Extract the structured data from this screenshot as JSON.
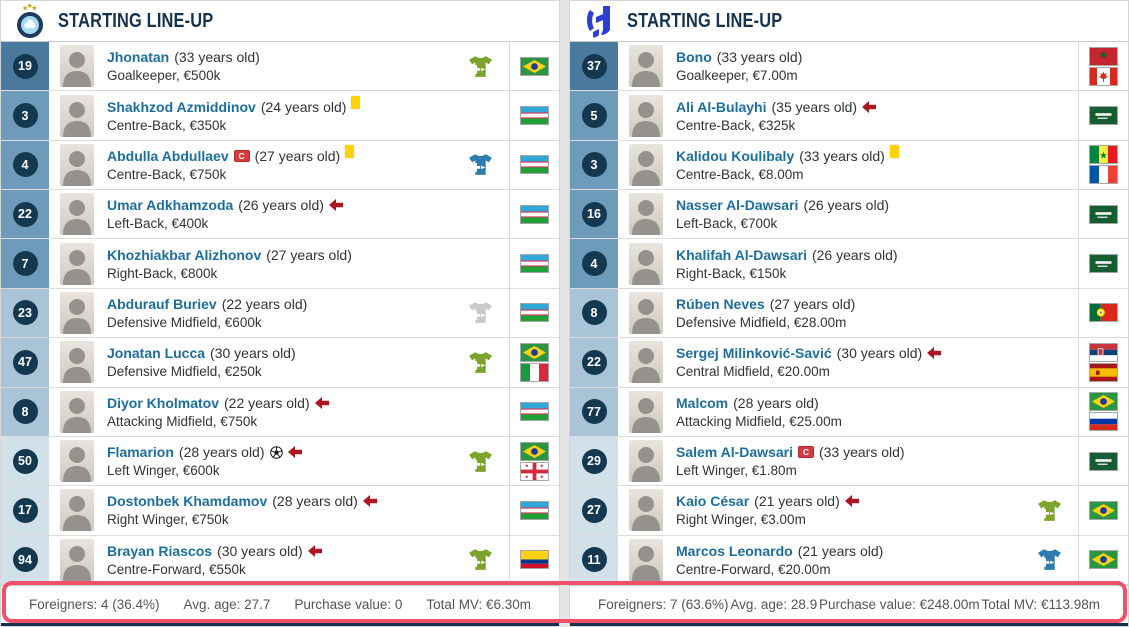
{
  "colors": {
    "accent_highlight": "#f0506a",
    "name_link": "#1c6e9e",
    "header_navy": "#15324e",
    "badge_navy": "#13384f",
    "group_gk": "#49799c",
    "group_df": "#6e9bb9",
    "group_mf": "#a9c4d7",
    "group_fw": "#d2e0ea",
    "jersey_green": "#7ca32c",
    "jersey_blue": "#2f7cb0",
    "jersey_gray": "#c9c9c9",
    "yellow_card": "#ffd400",
    "sub_off_arrow": "#ac1620"
  },
  "teams": [
    {
      "title": "STARTING LINE-UP",
      "crest_icon": "uzbek-club-crest",
      "players": [
        {
          "number": "19",
          "group": "gk",
          "name": "Jhonatan",
          "captain": false,
          "age_text": "(33 years old)",
          "yellow_card": false,
          "goal": false,
          "sub_off": false,
          "position": "Goalkeeper",
          "value": "€500k",
          "jersey": "green",
          "flags": [
            "brazil"
          ]
        },
        {
          "number": "3",
          "group": "df",
          "name": "Shakhzod Azmiddinov",
          "captain": false,
          "age_text": "(24 years old)",
          "yellow_card": true,
          "goal": false,
          "sub_off": false,
          "position": "Centre-Back",
          "value": "€350k",
          "jersey": null,
          "flags": [
            "uzbekistan"
          ]
        },
        {
          "number": "4",
          "group": "df",
          "name": "Abdulla Abdullaev",
          "captain": true,
          "age_text": "(27 years old)",
          "yellow_card": true,
          "goal": false,
          "sub_off": false,
          "position": "Centre-Back",
          "value": "€750k",
          "jersey": "blue",
          "flags": [
            "uzbekistan"
          ]
        },
        {
          "number": "22",
          "group": "df",
          "name": "Umar Adkhamzoda",
          "captain": false,
          "age_text": "(26 years old)",
          "yellow_card": false,
          "goal": false,
          "sub_off": true,
          "position": "Left-Back",
          "value": "€400k",
          "jersey": null,
          "flags": [
            "uzbekistan"
          ]
        },
        {
          "number": "7",
          "group": "df",
          "name": "Khozhiakbar Alizhonov",
          "captain": false,
          "age_text": "(27 years old)",
          "yellow_card": false,
          "goal": false,
          "sub_off": false,
          "position": "Right-Back",
          "value": "€800k",
          "jersey": null,
          "flags": [
            "uzbekistan"
          ]
        },
        {
          "number": "23",
          "group": "mf",
          "name": "Abdurauf Buriev",
          "captain": false,
          "age_text": "(22 years old)",
          "yellow_card": false,
          "goal": false,
          "sub_off": false,
          "position": "Defensive Midfield",
          "value": "€600k",
          "jersey": "gray",
          "flags": [
            "uzbekistan"
          ]
        },
        {
          "number": "47",
          "group": "mf",
          "name": "Jonatan Lucca",
          "captain": false,
          "age_text": "(30 years old)",
          "yellow_card": false,
          "goal": false,
          "sub_off": false,
          "position": "Defensive Midfield",
          "value": "€250k",
          "jersey": "green",
          "flags": [
            "brazil",
            "italy"
          ]
        },
        {
          "number": "8",
          "group": "mf",
          "name": "Diyor Kholmatov",
          "captain": false,
          "age_text": "(22 years old)",
          "yellow_card": false,
          "goal": false,
          "sub_off": true,
          "position": "Attacking Midfield",
          "value": "€750k",
          "jersey": null,
          "flags": [
            "uzbekistan"
          ]
        },
        {
          "number": "50",
          "group": "fw",
          "name": "Flamarion",
          "captain": false,
          "age_text": "(28 years old)",
          "yellow_card": false,
          "goal": true,
          "sub_off": true,
          "position": "Left Winger",
          "value": "€600k",
          "jersey": "green",
          "flags": [
            "brazil",
            "georgia"
          ]
        },
        {
          "number": "17",
          "group": "fw",
          "name": "Dostonbek Khamdamov",
          "captain": false,
          "age_text": "(28 years old)",
          "yellow_card": false,
          "goal": false,
          "sub_off": true,
          "position": "Right Winger",
          "value": "€750k",
          "jersey": null,
          "flags": [
            "uzbekistan"
          ]
        },
        {
          "number": "94",
          "group": "fw",
          "name": "Brayan Riascos",
          "captain": false,
          "age_text": "(30 years old)",
          "yellow_card": false,
          "goal": false,
          "sub_off": true,
          "position": "Centre-Forward",
          "value": "€550k",
          "jersey": "green",
          "flags": [
            "colombia"
          ]
        }
      ],
      "stats": [
        "Foreigners: 4 (36.4%)",
        "Avg. age: 27.7",
        "Purchase value: 0",
        "Total MV: €6.30m"
      ]
    },
    {
      "title": "STARTING LINE-UP",
      "crest_icon": "al-hilal-crest",
      "players": [
        {
          "number": "37",
          "group": "gk",
          "name": "Bono",
          "captain": false,
          "age_text": "(33 years old)",
          "yellow_card": false,
          "goal": false,
          "sub_off": false,
          "position": "Goalkeeper",
          "value": "€7.00m",
          "jersey": null,
          "flags": [
            "morocco",
            "canada"
          ]
        },
        {
          "number": "5",
          "group": "df",
          "name": "Ali Al-Bulayhi",
          "captain": false,
          "age_text": "(35 years old)",
          "yellow_card": false,
          "goal": false,
          "sub_off": true,
          "position": "Centre-Back",
          "value": "€325k",
          "jersey": null,
          "flags": [
            "saudi-arabia"
          ]
        },
        {
          "number": "3",
          "group": "df",
          "name": "Kalidou Koulibaly",
          "captain": false,
          "age_text": "(33 years old)",
          "yellow_card": true,
          "goal": false,
          "sub_off": false,
          "position": "Centre-Back",
          "value": "€8.00m",
          "jersey": null,
          "flags": [
            "senegal",
            "france"
          ]
        },
        {
          "number": "16",
          "group": "df",
          "name": "Nasser Al-Dawsari",
          "captain": false,
          "age_text": "(26 years old)",
          "yellow_card": false,
          "goal": false,
          "sub_off": false,
          "position": "Left-Back",
          "value": "€700k",
          "jersey": null,
          "flags": [
            "saudi-arabia"
          ]
        },
        {
          "number": "4",
          "group": "df",
          "name": "Khalifah Al-Dawsari",
          "captain": false,
          "age_text": "(26 years old)",
          "yellow_card": false,
          "goal": false,
          "sub_off": false,
          "position": "Right-Back",
          "value": "€150k",
          "jersey": null,
          "flags": [
            "saudi-arabia"
          ]
        },
        {
          "number": "8",
          "group": "mf",
          "name": "Rúben Neves",
          "captain": false,
          "age_text": "(27 years old)",
          "yellow_card": false,
          "goal": false,
          "sub_off": false,
          "position": "Defensive Midfield",
          "value": "€28.00m",
          "jersey": null,
          "flags": [
            "portugal"
          ]
        },
        {
          "number": "22",
          "group": "mf",
          "name": "Sergej Milinković-Savić",
          "captain": false,
          "age_text": "(30 years old)",
          "yellow_card": false,
          "goal": false,
          "sub_off": true,
          "position": "Central Midfield",
          "value": "€20.00m",
          "jersey": null,
          "flags": [
            "serbia",
            "spain"
          ]
        },
        {
          "number": "77",
          "group": "mf",
          "name": "Malcom",
          "captain": false,
          "age_text": "(28 years old)",
          "yellow_card": false,
          "goal": false,
          "sub_off": false,
          "position": "Attacking Midfield",
          "value": "€25.00m",
          "jersey": null,
          "flags": [
            "brazil",
            "russia"
          ]
        },
        {
          "number": "29",
          "group": "fw",
          "name": "Salem Al-Dawsari",
          "captain": true,
          "age_text": "(33 years old)",
          "yellow_card": false,
          "goal": false,
          "sub_off": false,
          "position": "Left Winger",
          "value": "€1.80m",
          "jersey": null,
          "flags": [
            "saudi-arabia"
          ]
        },
        {
          "number": "27",
          "group": "fw",
          "name": "Kaio César",
          "captain": false,
          "age_text": "(21 years old)",
          "yellow_card": false,
          "goal": false,
          "sub_off": true,
          "position": "Right Winger",
          "value": "€3.00m",
          "jersey": "green",
          "flags": [
            "brazil"
          ]
        },
        {
          "number": "11",
          "group": "fw",
          "name": "Marcos Leonardo",
          "captain": false,
          "age_text": "(21 years old)",
          "yellow_card": false,
          "goal": false,
          "sub_off": false,
          "position": "Centre-Forward",
          "value": "€20.00m",
          "jersey": "blue",
          "flags": [
            "brazil"
          ]
        }
      ],
      "stats": [
        "Foreigners: 7 (63.6%)",
        "Avg. age: 28.9",
        "Purchase value: €248.00m",
        "Total MV: €113.98m"
      ]
    }
  ]
}
